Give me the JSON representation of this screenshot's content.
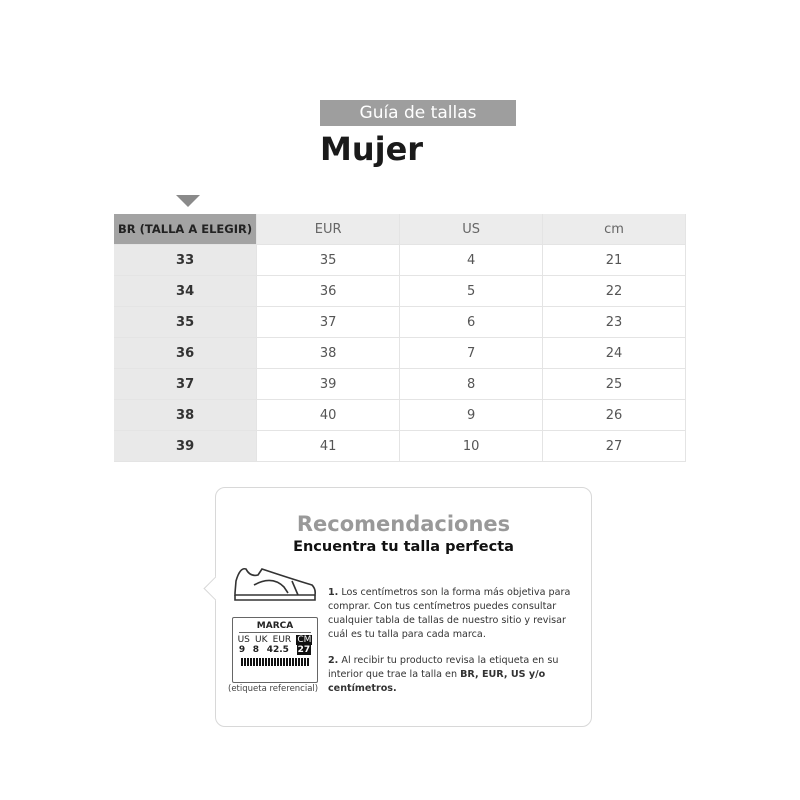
{
  "header": {
    "tag": "Guía de tallas",
    "title": "Mujer"
  },
  "table": {
    "headers": [
      "BR (TALLA A ELEGIR)",
      "EUR",
      "US",
      "cm"
    ],
    "rows": [
      [
        "33",
        "35",
        "4",
        "21"
      ],
      [
        "34",
        "36",
        "5",
        "22"
      ],
      [
        "35",
        "37",
        "6",
        "23"
      ],
      [
        "36",
        "38",
        "7",
        "24"
      ],
      [
        "37",
        "39",
        "8",
        "25"
      ],
      [
        "38",
        "40",
        "9",
        "26"
      ],
      [
        "39",
        "41",
        "10",
        "27"
      ]
    ]
  },
  "card": {
    "title": "Recomendaciones",
    "subtitle": "Encuentra tu talla perfecta",
    "p1_num": "1.",
    "p1": " Los centímetros son la forma más objetiva para comprar. Con tus centímetros puedes consultar cualquier tabla de tallas de nuestro sitio y revisar cuál es tu talla para cada marca.",
    "p2_num": "2.",
    "p2": " Al recibir tu producto revisa la etiqueta en su interior que trae la talla en ",
    "p2_bold": "BR, EUR, US y/o centímetros.",
    "label": {
      "brand": "MARCA",
      "heads": [
        "US",
        "UK",
        "EUR",
        "CM"
      ],
      "values": [
        "9",
        "8",
        "42.5",
        "27"
      ],
      "caption": "(etiqueta referencial)"
    },
    "icons": [
      "sneaker-icon",
      "barcode-icon"
    ]
  }
}
